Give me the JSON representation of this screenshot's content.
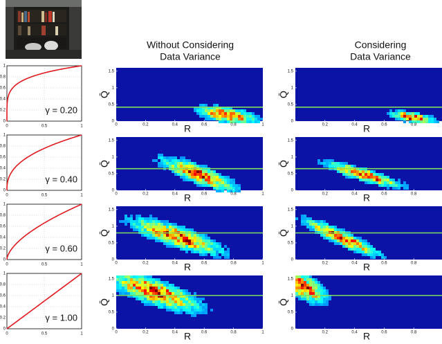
{
  "column_titles": [
    [
      "Without Considering",
      "Data Variance"
    ],
    [
      "Considering",
      "Data Variance"
    ]
  ],
  "chart_data": [
    {
      "type": "curve",
      "gamma": 0.2,
      "annotation": "γ = 0.20",
      "color": "#e0181e",
      "xlim": [
        0,
        1
      ],
      "xticks": [
        0,
        0.5,
        1
      ],
      "ylim": [
        0,
        1
      ],
      "yticks": [
        0,
        0.2,
        0.4,
        0.6,
        0.8,
        1
      ],
      "grid": true
    },
    {
      "type": "curve",
      "gamma": 0.4,
      "annotation": "γ = 0.40",
      "color": "#e0181e",
      "xlim": [
        0,
        1
      ],
      "xticks": [
        0,
        0.5,
        1
      ],
      "ylim": [
        0,
        1
      ],
      "yticks": [
        0,
        0.2,
        0.4,
        0.6,
        0.8,
        1
      ],
      "grid": true
    },
    {
      "type": "curve",
      "gamma": 0.6,
      "annotation": "γ = 0.60",
      "color": "#e0181e",
      "xlim": [
        0,
        1
      ],
      "xticks": [
        0,
        0.5,
        1
      ],
      "ylim": [
        0,
        1
      ],
      "yticks": [
        0,
        0.2,
        0.4,
        0.6,
        0.8,
        1
      ],
      "grid": true
    },
    {
      "type": "curve",
      "gamma": 1.0,
      "annotation": "γ = 1.00",
      "color": "#e0181e",
      "xlim": [
        0,
        1
      ],
      "xticks": [
        0,
        0.5,
        1
      ],
      "ylim": [
        0,
        1
      ],
      "yticks": [
        0,
        0.2,
        0.4,
        0.6,
        0.8,
        1
      ],
      "grid": true
    },
    {
      "type": "heatmap",
      "xlabel": "R",
      "ylabel": "Q̄",
      "threshold": 0.42,
      "color": "#7fe05a",
      "xlim": [
        0,
        1
      ],
      "xticks": [
        0,
        0.2,
        0.4,
        0.6,
        0.8,
        1
      ],
      "ylim": [
        0,
        1.6
      ],
      "yticks": [
        0,
        0.5,
        1,
        1.5
      ]
    },
    {
      "type": "heatmap",
      "xlabel": "R",
      "ylabel": "Q̄",
      "threshold": 0.65,
      "color": "#7fe05a",
      "xlim": [
        0,
        1
      ],
      "xticks": [
        0,
        0.2,
        0.4,
        0.6,
        0.8,
        1
      ],
      "ylim": [
        0,
        1.6
      ],
      "yticks": [
        0,
        0.5,
        1,
        1.5
      ]
    },
    {
      "type": "heatmap",
      "xlabel": "R",
      "ylabel": "Q̄",
      "threshold": 0.8,
      "color": "#7fe05a",
      "xlim": [
        0,
        1
      ],
      "xticks": [
        0,
        0.2,
        0.4,
        0.6,
        0.8,
        1
      ],
      "ylim": [
        0,
        1.6
      ],
      "yticks": [
        0,
        0.5,
        1,
        1.5
      ]
    },
    {
      "type": "heatmap",
      "xlabel": "R",
      "ylabel": "Q̄",
      "threshold": 1.0,
      "color": "#7fe05a",
      "xlim": [
        0,
        1
      ],
      "xticks": [
        0,
        0.2,
        0.4,
        0.6,
        0.8,
        1
      ],
      "ylim": [
        0,
        1.6
      ],
      "yticks": [
        0,
        0.5,
        1,
        1.5
      ]
    },
    {
      "type": "heatmap",
      "xlabel": "R",
      "ylabel": "Q̄",
      "threshold": 0.42,
      "color": "#7fe05a",
      "xlim": [
        0,
        1
      ],
      "xticks": [
        0.2,
        0.4,
        0.6,
        0.8
      ],
      "ylim": [
        0,
        1.6
      ],
      "yticks": [
        0,
        0.5,
        1,
        1.5
      ]
    },
    {
      "type": "heatmap",
      "xlabel": "R",
      "ylabel": "Q̄",
      "threshold": 0.65,
      "color": "#7fe05a",
      "xlim": [
        0,
        1
      ],
      "xticks": [
        0.2,
        0.4,
        0.6,
        0.8
      ],
      "ylim": [
        0,
        1.6
      ],
      "yticks": [
        0,
        0.5,
        1,
        1.5
      ]
    },
    {
      "type": "heatmap",
      "xlabel": "R",
      "ylabel": "Q̄",
      "threshold": 0.8,
      "color": "#7fe05a",
      "xlim": [
        0,
        1
      ],
      "xticks": [
        0.2,
        0.4,
        0.6,
        0.8
      ],
      "ylim": [
        0,
        1.6
      ],
      "yticks": [
        0,
        0.5,
        1,
        1.5
      ]
    },
    {
      "type": "heatmap",
      "xlabel": "R",
      "ylabel": "Q̄",
      "threshold": 1.0,
      "color": "#7fe05a",
      "xlim": [
        0,
        1
      ],
      "xticks": [
        0.2,
        0.4,
        0.6,
        0.8
      ],
      "ylim": [
        0,
        1.6
      ],
      "yticks": [
        0,
        0.5,
        1,
        1.5
      ]
    }
  ]
}
